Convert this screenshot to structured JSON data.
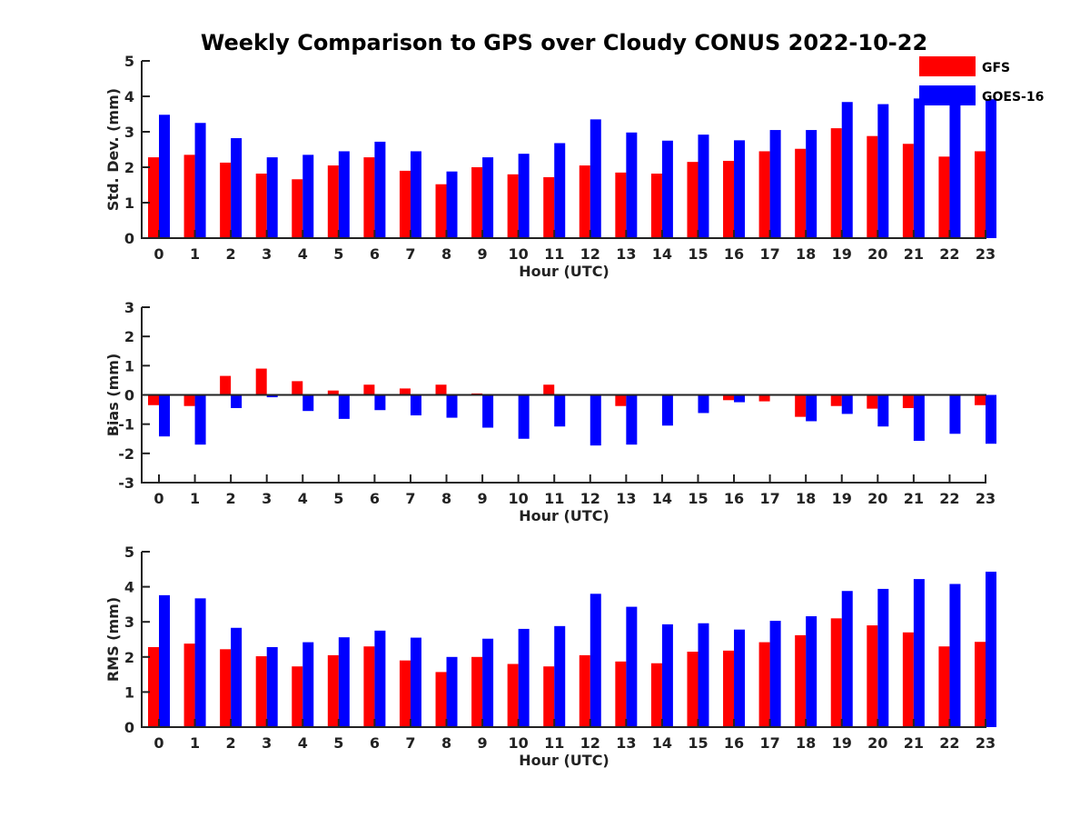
{
  "figure": {
    "title": "Weekly Comparison to GPS over Cloudy CONUS 2022-10-22"
  },
  "legend": {
    "placement": "top-right",
    "entries": [
      {
        "name": "GFS",
        "color": "#ff0000"
      },
      {
        "name": "GOES-16",
        "color": "#0000ff"
      }
    ]
  },
  "chart_data": [
    {
      "type": "bar",
      "title": "Weekly Comparison to GPS over Cloudy CONUS 2022-10-22",
      "xlabel": "Hour (UTC)",
      "ylabel": "Std. Dev. (mm)",
      "ylim": [
        0,
        5
      ],
      "yticks": [
        0,
        1,
        2,
        3,
        4,
        5
      ],
      "categories": [
        "0",
        "1",
        "2",
        "3",
        "4",
        "5",
        "6",
        "7",
        "8",
        "9",
        "10",
        "11",
        "12",
        "13",
        "14",
        "15",
        "16",
        "17",
        "18",
        "19",
        "20",
        "21",
        "22",
        "23"
      ],
      "series": [
        {
          "name": "GFS",
          "color": "#ff0000",
          "values": [
            2.28,
            2.35,
            2.13,
            1.82,
            1.66,
            2.05,
            2.28,
            1.9,
            1.52,
            2.0,
            1.8,
            1.72,
            2.05,
            1.85,
            1.82,
            2.15,
            2.18,
            2.45,
            2.52,
            3.1,
            2.88,
            2.66,
            2.3,
            2.45
          ]
        },
        {
          "name": "GOES-16",
          "color": "#0000ff",
          "values": [
            3.48,
            3.25,
            2.82,
            2.28,
            2.35,
            2.45,
            2.72,
            2.45,
            1.88,
            2.28,
            2.38,
            2.68,
            3.35,
            2.98,
            2.75,
            2.92,
            2.76,
            3.05,
            3.05,
            3.84,
            3.78,
            3.94,
            3.85,
            3.92
          ]
        }
      ]
    },
    {
      "type": "bar",
      "xlabel": "Hour (UTC)",
      "ylabel": "Bias (mm)",
      "ylim": [
        -3,
        3
      ],
      "yticks": [
        -3,
        -2,
        -1,
        0,
        1,
        2,
        3
      ],
      "categories": [
        "0",
        "1",
        "2",
        "3",
        "4",
        "5",
        "6",
        "7",
        "8",
        "9",
        "10",
        "11",
        "12",
        "13",
        "14",
        "15",
        "16",
        "17",
        "18",
        "19",
        "20",
        "21",
        "22",
        "23"
      ],
      "series": [
        {
          "name": "GFS",
          "color": "#ff0000",
          "values": [
            -0.35,
            -0.38,
            0.65,
            0.9,
            0.47,
            0.15,
            0.35,
            0.22,
            0.35,
            0.05,
            0.02,
            0.35,
            0.0,
            -0.38,
            -0.03,
            0.0,
            -0.18,
            -0.22,
            -0.75,
            -0.38,
            -0.47,
            -0.45,
            0.0,
            -0.35
          ]
        },
        {
          "name": "GOES-16",
          "color": "#0000ff",
          "values": [
            -1.42,
            -1.7,
            -0.45,
            -0.08,
            -0.55,
            -0.82,
            -0.52,
            -0.7,
            -0.78,
            -1.12,
            -1.5,
            -1.08,
            -1.73,
            -1.7,
            -1.05,
            -0.62,
            -0.25,
            0.0,
            -0.9,
            -0.65,
            -1.08,
            -1.57,
            -1.33,
            -1.67
          ]
        }
      ]
    },
    {
      "type": "bar",
      "xlabel": "Hour (UTC)",
      "ylabel": "RMS (mm)",
      "ylim": [
        0,
        5
      ],
      "yticks": [
        0,
        1,
        2,
        3,
        4,
        5
      ],
      "categories": [
        "0",
        "1",
        "2",
        "3",
        "4",
        "5",
        "6",
        "7",
        "8",
        "9",
        "10",
        "11",
        "12",
        "13",
        "14",
        "15",
        "16",
        "17",
        "18",
        "19",
        "20",
        "21",
        "22",
        "23"
      ],
      "series": [
        {
          "name": "GFS",
          "color": "#ff0000",
          "values": [
            2.28,
            2.38,
            2.22,
            2.02,
            1.73,
            2.05,
            2.3,
            1.9,
            1.57,
            2.0,
            1.8,
            1.73,
            2.05,
            1.87,
            1.82,
            2.15,
            2.18,
            2.42,
            2.62,
            3.1,
            2.9,
            2.7,
            2.3,
            2.43
          ]
        },
        {
          "name": "GOES-16",
          "color": "#0000ff",
          "values": [
            3.76,
            3.67,
            2.83,
            2.28,
            2.42,
            2.56,
            2.75,
            2.55,
            2.0,
            2.52,
            2.8,
            2.88,
            3.8,
            3.43,
            2.93,
            2.96,
            2.78,
            3.03,
            3.16,
            3.88,
            3.94,
            4.22,
            4.08,
            4.43
          ]
        }
      ]
    }
  ]
}
